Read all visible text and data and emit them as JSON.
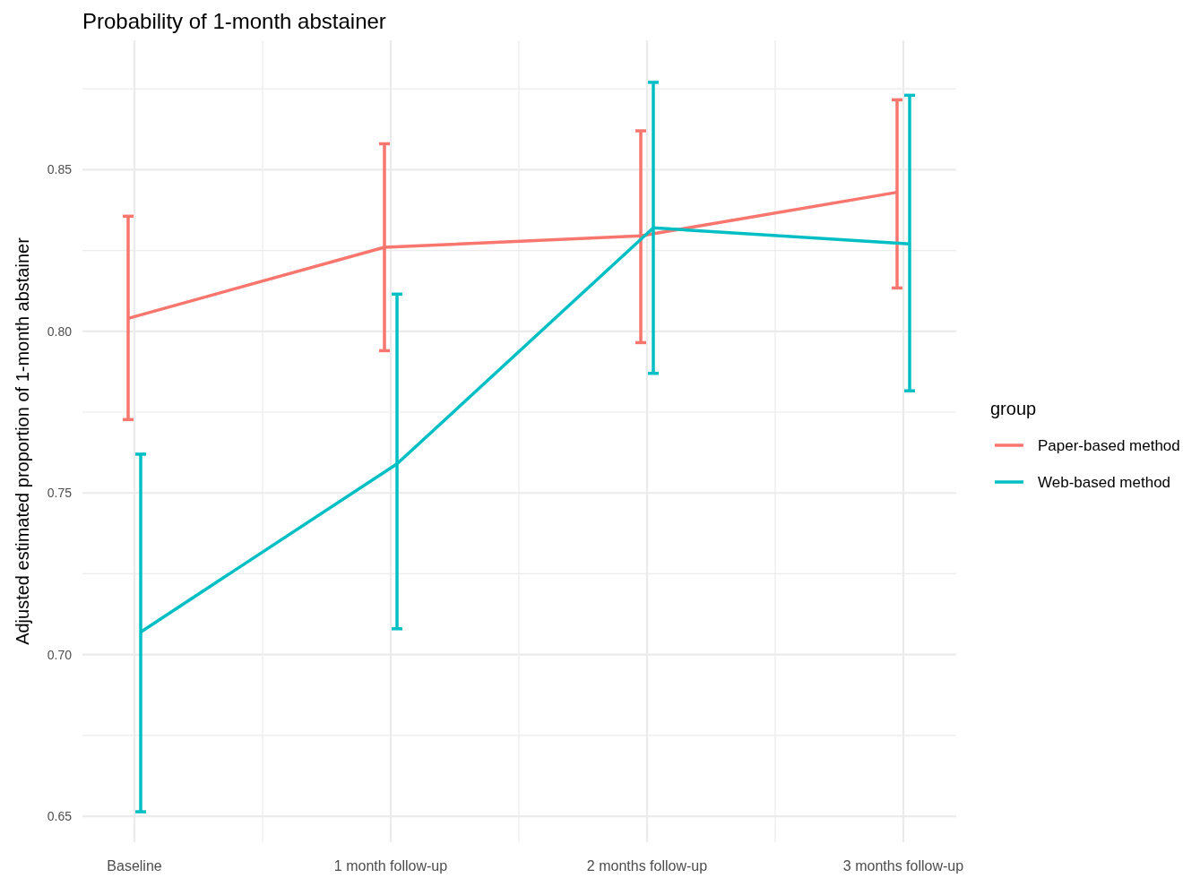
{
  "chart_data": {
    "type": "line",
    "title": "Probability of 1-month abstainer",
    "ylabel": "Adjusted estimated proportion of 1-month abstainer",
    "categories": [
      "Baseline",
      "1 month follow-up",
      "2 months follow-up",
      "3 months follow-up"
    ],
    "series": [
      {
        "name": "Paper-based method",
        "color": "#f8766d",
        "values": [
          0.804,
          0.826,
          0.8295,
          0.843
        ],
        "errors": [
          [
            0.7727,
            0.8356
          ],
          [
            0.794,
            0.858
          ],
          [
            0.7965,
            0.862
          ],
          [
            0.8134,
            0.8716
          ]
        ]
      },
      {
        "name": "Web-based method",
        "color": "#00bfc4",
        "values": [
          0.707,
          0.759,
          0.832,
          0.827
        ],
        "errors": [
          [
            0.6514,
            0.762
          ],
          [
            0.708,
            0.8115
          ],
          [
            0.787,
            0.877
          ],
          [
            0.7816,
            0.873
          ]
        ]
      }
    ],
    "ylim": [
      0.642,
      0.89
    ],
    "yticks": [
      {
        "value": 0.65,
        "label": "0.65"
      },
      {
        "value": 0.675,
        "label": null
      },
      {
        "value": 0.7,
        "label": "0.70"
      },
      {
        "value": 0.725,
        "label": null
      },
      {
        "value": 0.75,
        "label": "0.75"
      },
      {
        "value": 0.775,
        "label": null
      },
      {
        "value": 0.8,
        "label": "0.80"
      },
      {
        "value": 0.825,
        "label": null
      },
      {
        "value": 0.85,
        "label": "0.85"
      },
      {
        "value": 0.875,
        "label": null
      }
    ],
    "grid": true,
    "legend": "right",
    "legend_title": "group",
    "marker": "none",
    "line_style": "solid"
  }
}
